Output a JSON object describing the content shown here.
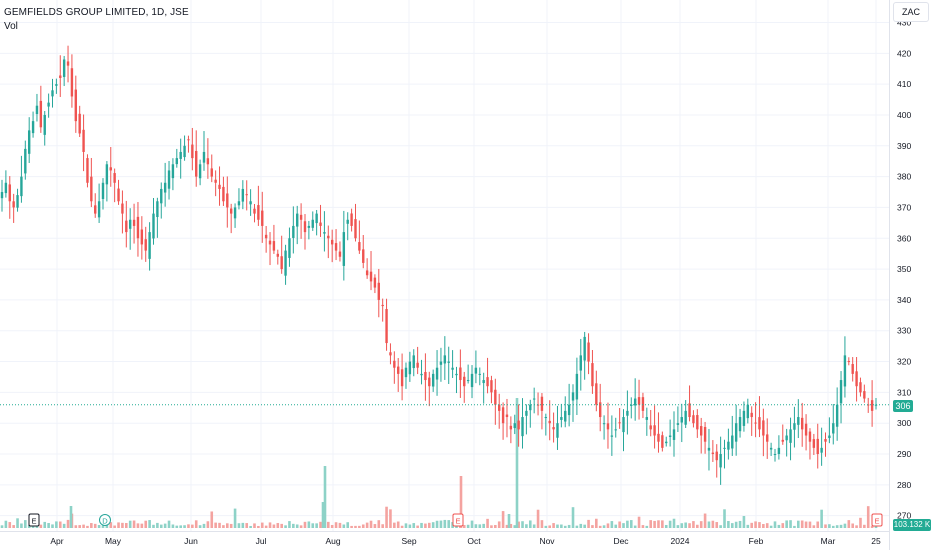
{
  "legend": {
    "title": "GEMFIELDS GROUP LIMITED, 1D, JSE",
    "volume_label": "Vol"
  },
  "currency": "ZAC",
  "last_price_label": "306",
  "last_volume_label": "103.132 K",
  "colors": {
    "up": "#26a69a",
    "down": "#ef5350",
    "up_vol": "#8dd2c7",
    "down_vol": "#f4a3a0",
    "grid": "#f0f3fa",
    "axis_text": "#131722",
    "last_price_line": "#22ab94"
  },
  "chart_data": {
    "type": "candlestick",
    "title": "GEMFIELDS GROUP LIMITED, 1D, JSE",
    "y_axis": {
      "ylim": [
        266,
        436
      ],
      "ticks": [
        270,
        280,
        290,
        300,
        310,
        320,
        330,
        340,
        350,
        360,
        370,
        380,
        390,
        400,
        410,
        420,
        430
      ],
      "position": "right"
    },
    "x_axis": {
      "ticks": [
        "Apr",
        "May",
        "Jun",
        "Jul",
        "Aug",
        "Sep",
        "Oct",
        "Nov",
        "Dec",
        "2024",
        "Feb",
        "Mar",
        "25"
      ]
    },
    "last_price": 306,
    "last_volume": "103.132 K",
    "events": [
      {
        "label": "E",
        "near": "Apr"
      },
      {
        "label": "D",
        "near": "May"
      },
      {
        "label": "E",
        "near": "Oct"
      },
      {
        "label": "E",
        "near": "25"
      }
    ],
    "price_path": [
      375,
      378,
      372,
      370,
      374,
      380,
      389,
      395,
      398,
      403,
      396,
      400,
      404,
      408,
      410,
      412,
      418,
      416,
      406,
      398,
      394,
      388,
      378,
      372,
      368,
      372,
      378,
      384,
      382,
      378,
      372,
      368,
      362,
      366,
      364,
      360,
      358,
      356,
      362,
      368,
      372,
      376,
      378,
      382,
      384,
      386,
      388,
      390,
      392,
      386,
      380,
      384,
      388,
      384,
      380,
      378,
      376,
      372,
      370,
      368,
      370,
      372,
      376,
      374,
      372,
      368,
      366,
      364,
      360,
      358,
      356,
      354,
      350,
      356,
      360,
      364,
      368,
      366,
      362,
      364,
      366,
      368,
      364,
      362,
      360,
      358,
      356,
      354,
      362,
      366,
      364,
      360,
      356,
      352,
      348,
      346,
      344,
      340,
      338,
      326,
      322,
      318,
      316,
      312,
      318,
      320,
      322,
      318,
      316,
      314,
      312,
      316,
      318,
      320,
      322,
      320,
      318,
      316,
      314,
      312,
      314,
      316,
      318,
      316,
      314,
      312,
      310,
      306,
      304,
      300,
      302,
      298,
      300,
      298,
      302,
      304,
      306,
      308,
      306,
      304,
      302,
      300,
      298,
      300,
      302,
      304,
      306,
      310,
      316,
      322,
      328,
      320,
      312,
      306,
      302,
      300,
      298,
      296,
      298,
      300,
      302,
      304,
      306,
      308,
      306,
      304,
      302,
      298,
      296,
      294,
      292,
      294,
      296,
      298,
      300,
      302,
      304,
      302,
      300,
      298,
      296,
      294,
      292,
      290,
      288,
      290,
      292,
      294,
      296,
      300,
      302,
      304,
      306,
      302,
      300,
      298,
      296,
      294,
      292,
      290,
      292,
      294,
      296,
      298,
      300,
      302,
      298,
      296,
      294,
      292,
      290,
      292,
      294,
      296,
      300,
      306,
      314,
      322,
      320,
      316,
      312,
      310,
      308,
      306,
      304,
      306
    ]
  }
}
